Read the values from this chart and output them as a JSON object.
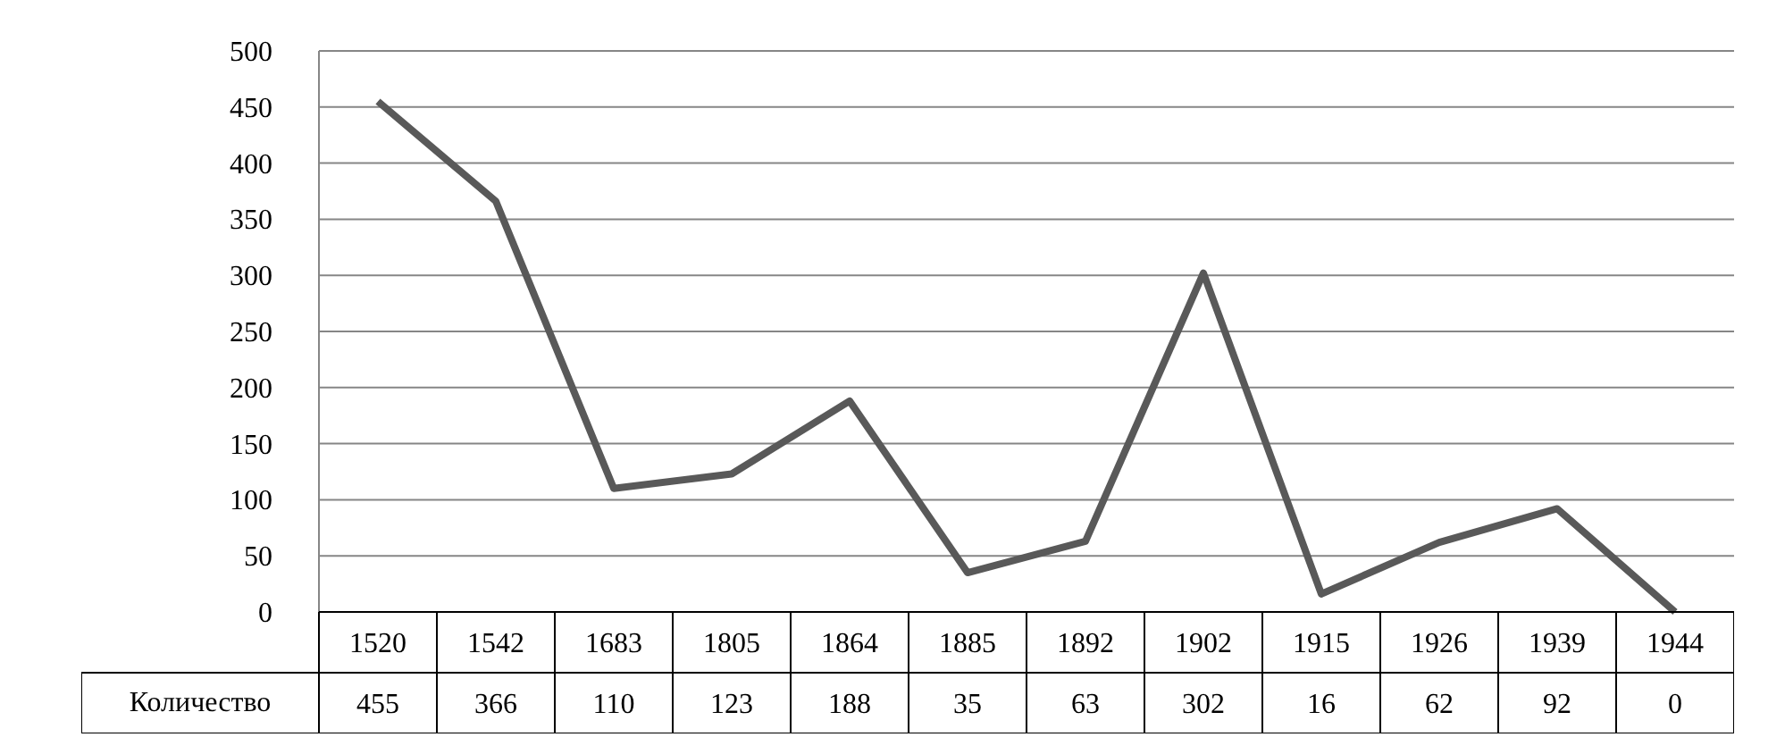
{
  "chart_data": {
    "type": "line",
    "categories": [
      "1520",
      "1542",
      "1683",
      "1805",
      "1864",
      "1885",
      "1892",
      "1902",
      "1915",
      "1926",
      "1939",
      "1944"
    ],
    "series": [
      {
        "name": "Количество",
        "color": "#595959",
        "values": [
          455,
          366,
          110,
          123,
          188,
          35,
          63,
          302,
          16,
          62,
          92,
          0
        ]
      }
    ],
    "ylim": [
      0,
      500
    ],
    "yticks": [
      0,
      50,
      100,
      150,
      200,
      250,
      300,
      350,
      400,
      450,
      500
    ],
    "grid": "y",
    "data_labels": true
  }
}
